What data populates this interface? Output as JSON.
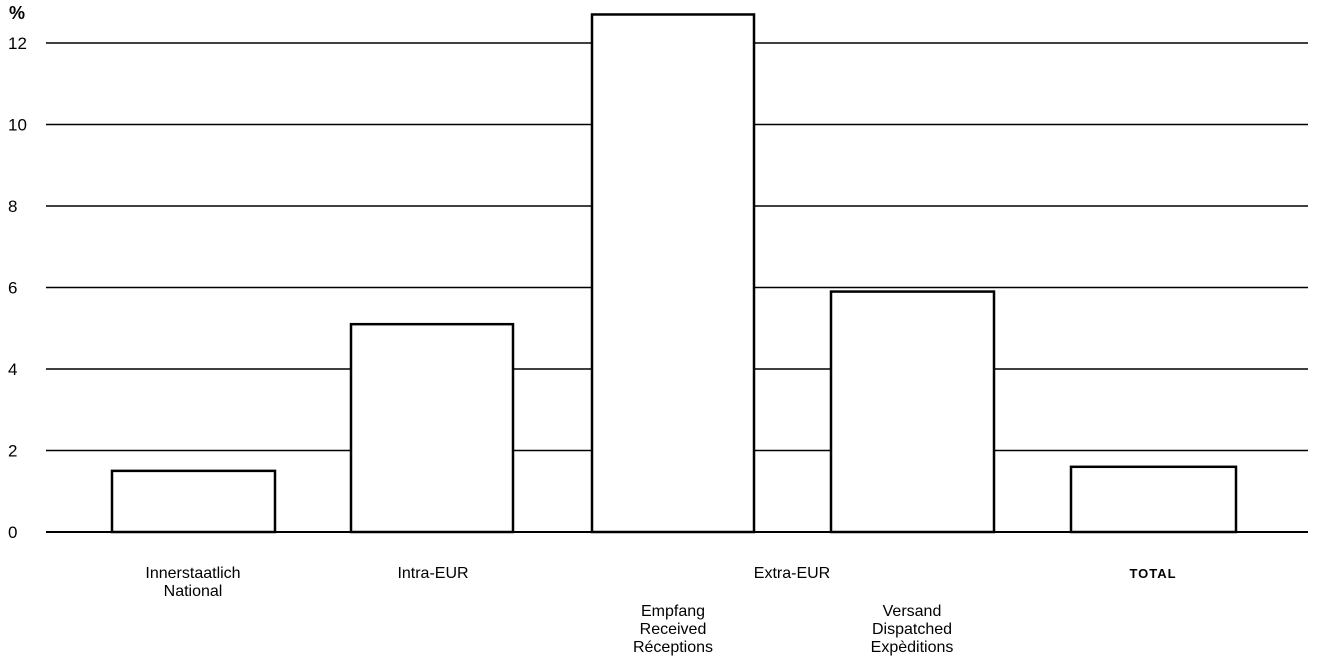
{
  "chart_data": {
    "type": "bar",
    "y_unit": "%",
    "ylim": [
      0,
      12.7
    ],
    "yticks": [
      0,
      2,
      4,
      6,
      8,
      10,
      12
    ],
    "grid": true,
    "legend": "none",
    "bars": [
      {
        "id": "innerstaatlich",
        "value": 1.5
      },
      {
        "id": "intra-eur",
        "value": 5.1
      },
      {
        "id": "extra-eur-empfang",
        "value": 12.7
      },
      {
        "id": "extra-eur-versand",
        "value": 5.9
      },
      {
        "id": "total",
        "value": 1.6
      }
    ],
    "categories": [
      {
        "id": "innerstaatlich",
        "lines": [
          "Innerstaatlich",
          "National"
        ]
      },
      {
        "id": "intra-eur",
        "lines": [
          "Intra-EUR"
        ]
      },
      {
        "id": "extra-eur",
        "lines": [
          "Extra-EUR"
        ]
      },
      {
        "id": "total",
        "lines": [
          "TOTAL"
        ]
      }
    ],
    "sub_categories": [
      {
        "id": "extra-eur-empfang",
        "lines": [
          "Empfang",
          "Received",
          "Réceptions"
        ]
      },
      {
        "id": "extra-eur-versand",
        "lines": [
          "Versand",
          "Dispatched",
          "Expèditions"
        ]
      }
    ]
  },
  "colors": {
    "bar_fill": "#ffffff",
    "bar_stroke": "#000000",
    "grid": "#000000",
    "background": "#ffffff"
  }
}
